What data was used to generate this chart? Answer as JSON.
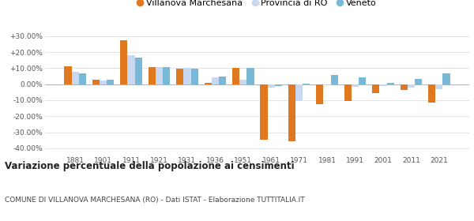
{
  "years": [
    1881,
    1901,
    1911,
    1921,
    1931,
    1936,
    1951,
    1961,
    1971,
    1981,
    1991,
    2001,
    2011,
    2021
  ],
  "villanova": [
    11.0,
    3.0,
    27.5,
    10.5,
    9.5,
    1.0,
    10.0,
    -34.5,
    -35.5,
    -12.5,
    -10.5,
    -5.5,
    -3.5,
    -11.5
  ],
  "provincia": [
    7.5,
    2.5,
    18.0,
    10.5,
    10.0,
    4.5,
    3.0,
    -2.0,
    -10.5,
    -0.5,
    -1.5,
    -1.0,
    -2.0,
    -3.0
  ],
  "veneto": [
    6.5,
    3.0,
    16.5,
    10.5,
    9.5,
    5.0,
    10.0,
    -1.0,
    0.5,
    6.0,
    4.5,
    1.0,
    3.5,
    6.5
  ],
  "villanova_color": "#e07820",
  "provincia_color": "#c8d8f0",
  "veneto_color": "#7ab8d8",
  "title": "Variazione percentuale della popolazione ai censimenti",
  "subtitle": "COMUNE DI VILLANOVA MARCHESANA (RO) - Dati ISTAT - Elaborazione TUTTITALIA.IT",
  "legend_labels": [
    "Villanova Marchesana",
    "Provincia di RO",
    "Veneto"
  ],
  "ylim": [
    -44,
    36
  ],
  "yticks": [
    -40,
    -30,
    -20,
    -10,
    0,
    10,
    20,
    30
  ],
  "ytick_labels": [
    "-40.00%",
    "-30.00%",
    "-20.00%",
    "-10.00%",
    "0.00%",
    "+10.00%",
    "+20.00%",
    "+30.00%"
  ],
  "background_color": "#ffffff",
  "grid_color": "#d8d8d8"
}
